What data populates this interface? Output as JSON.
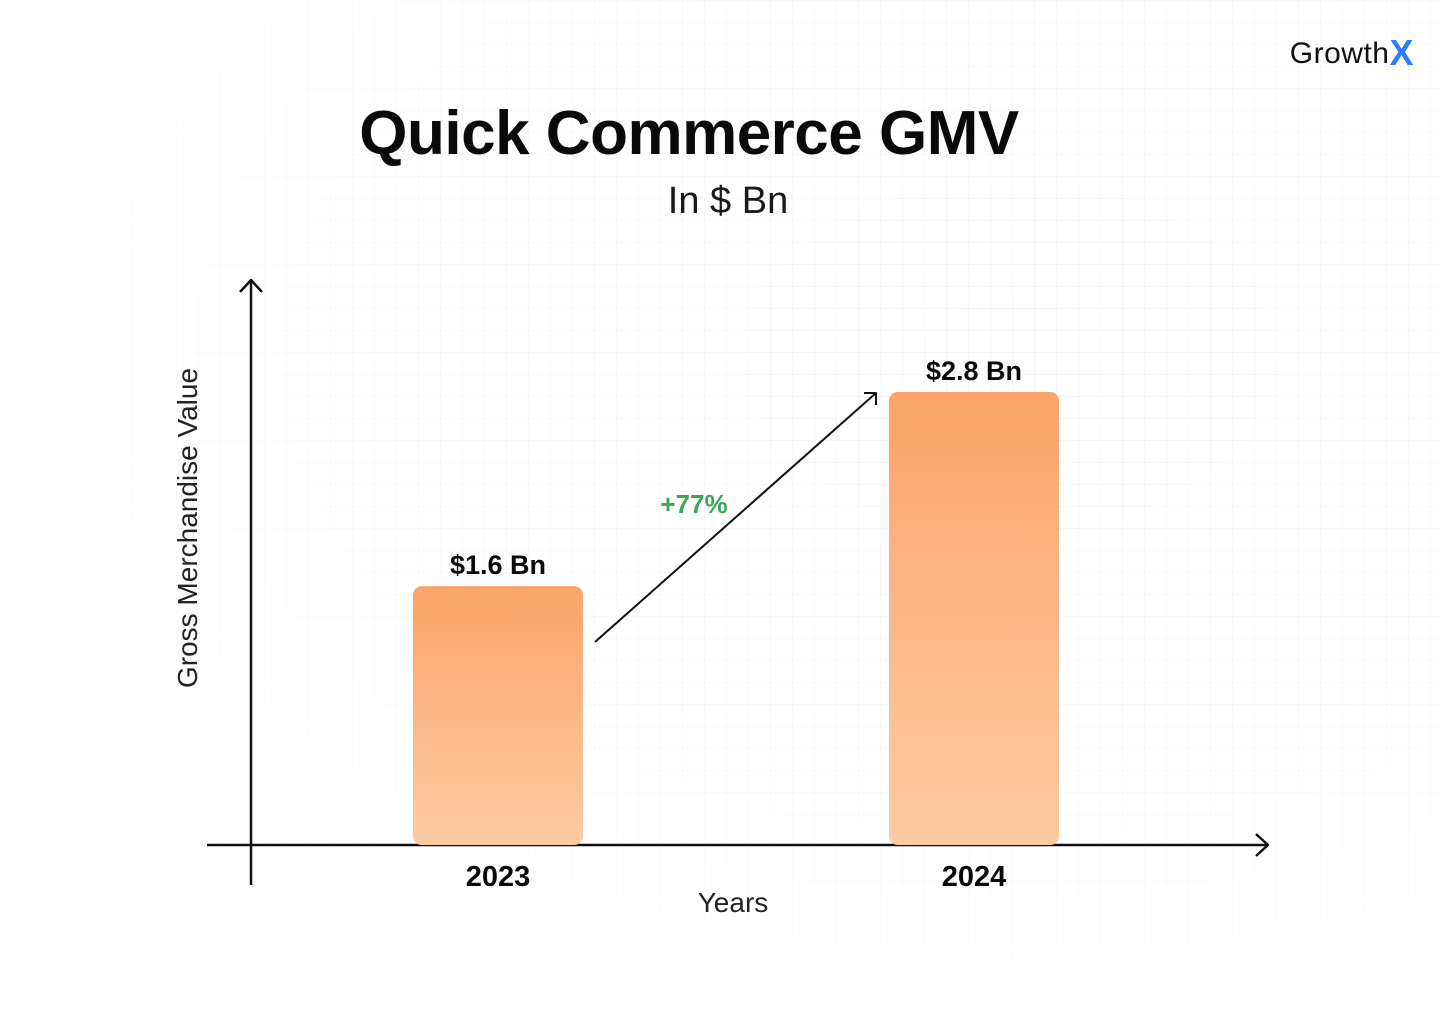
{
  "brand": {
    "name": "Growth",
    "accent_letter": "X",
    "accent_color": "#2f7df6"
  },
  "chart_data": {
    "type": "bar",
    "title": "Quick Commerce GMV",
    "subtitle": "In $ Bn",
    "xlabel": "Years",
    "ylabel": "Gross Merchandise Value",
    "categories": [
      "2023",
      "2024"
    ],
    "values": [
      1.6,
      2.8
    ],
    "value_labels": [
      "$1.6 Bn",
      "$2.8 Bn"
    ],
    "ylim": [
      0,
      2.8
    ],
    "growth_annotation": "+77%",
    "growth_color": "#3aa757",
    "bar_color_top": "#fba468",
    "bar_color_bottom": "#fecba4",
    "legend": "none",
    "grid": false
  }
}
